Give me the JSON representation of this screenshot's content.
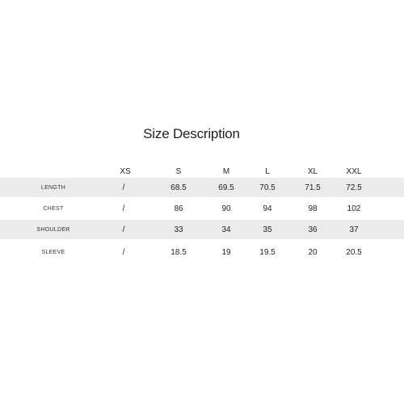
{
  "title": "Size Description",
  "columns": [
    "XS",
    "S",
    "M",
    "L",
    "XL",
    "XXL"
  ],
  "rows": [
    {
      "label": "LENGTH",
      "values": [
        "/",
        "68.5",
        "69.5",
        "70.5",
        "71.5",
        "72.5"
      ]
    },
    {
      "label": "CHEST",
      "values": [
        "/",
        "86",
        "90",
        "94",
        "98",
        "102"
      ]
    },
    {
      "label": "SHOULDER",
      "values": [
        "/",
        "33",
        "34",
        "35",
        "36",
        "37"
      ]
    },
    {
      "label": "SLEEVE",
      "values": [
        "/",
        "18.5",
        "19",
        "19.5",
        "20",
        "20.5"
      ]
    }
  ],
  "colors": {
    "shaded_row": "#ebebeb",
    "text": "#222222",
    "background": "#ffffff"
  }
}
